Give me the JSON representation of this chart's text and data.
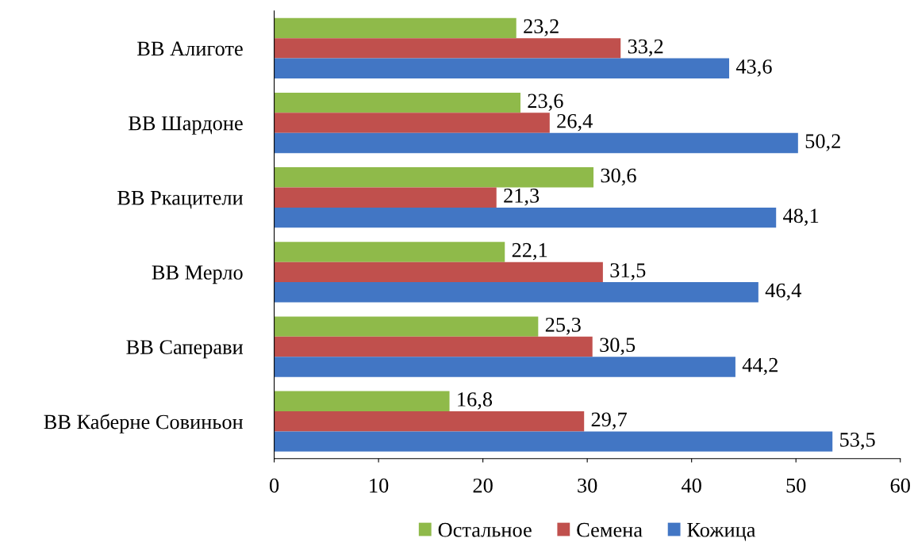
{
  "chart_data": {
    "type": "bar",
    "orientation": "horizontal",
    "categories": [
      "ВВ Алиготе",
      "ВВ Шардоне",
      "ВВ Ркацители",
      "ВВ Мерло",
      "ВВ Саперави",
      "ВВ Каберне Совиньон"
    ],
    "series": [
      {
        "name": "Остальное",
        "color": "#8fba4a",
        "values": [
          23.2,
          23.6,
          30.6,
          22.1,
          25.3,
          16.8
        ],
        "value_labels": [
          "23,2",
          "23,6",
          "30,6",
          "22,1",
          "25,3",
          "16,8"
        ]
      },
      {
        "name": "Семена",
        "color": "#c0504d",
        "values": [
          33.2,
          26.4,
          21.3,
          31.5,
          30.5,
          29.7
        ],
        "value_labels": [
          "33,2",
          "26,4",
          "21,3",
          "31,5",
          "30,5",
          "29,7"
        ]
      },
      {
        "name": "Кожица",
        "color": "#4276c4",
        "values": [
          43.6,
          50.2,
          48.1,
          46.4,
          44.2,
          53.5
        ],
        "value_labels": [
          "43,6",
          "50,2",
          "48,1",
          "46,4",
          "44,2",
          "53,5"
        ]
      }
    ],
    "xlim": [
      0,
      60
    ],
    "xticks": [
      0,
      10,
      20,
      30,
      40,
      50,
      60
    ],
    "grid": false,
    "legend": "bottom"
  }
}
